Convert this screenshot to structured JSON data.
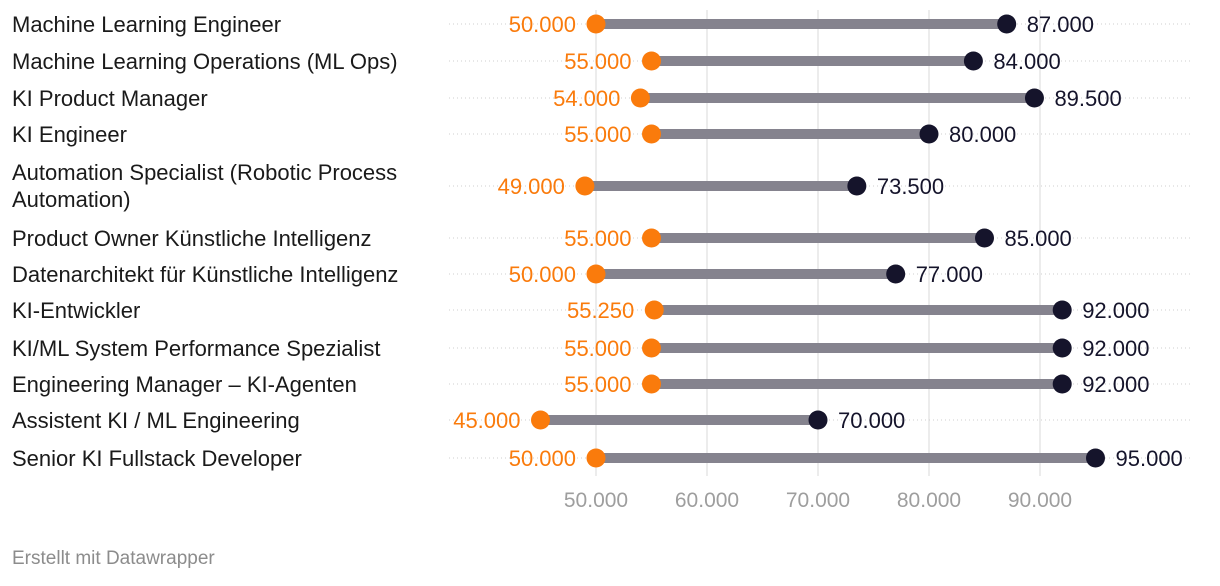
{
  "footer": "Erstellt mit Datawrapper",
  "colors": {
    "start": "#fa7b0c",
    "end": "#15142b",
    "bar": "#85838e",
    "grid": "#d9d9d9",
    "tick": "#9e9e9e"
  },
  "chart_data": {
    "type": "dot-range",
    "title": "",
    "xlabel": "",
    "ylabel": "",
    "xlim": [
      45000,
      95000
    ],
    "ticks": [
      50000,
      60000,
      70000,
      80000,
      90000
    ],
    "tick_labels": [
      "50.000",
      "60.000",
      "70.000",
      "80.000",
      "90.000"
    ],
    "rows": [
      {
        "label": "Machine Learning Engineer",
        "min": 50000,
        "max": 87000,
        "min_label": "50.000",
        "max_label": "87.000"
      },
      {
        "label": "Machine Learning Operations (ML Ops)",
        "min": 55000,
        "max": 84000,
        "min_label": "55.000",
        "max_label": "84.000"
      },
      {
        "label": "KI Product Manager",
        "min": 54000,
        "max": 89500,
        "min_label": "54.000",
        "max_label": "89.500"
      },
      {
        "label": "KI Engineer",
        "min": 55000,
        "max": 80000,
        "min_label": "55.000",
        "max_label": "80.000"
      },
      {
        "label": "Automation Specialist (Robotic Process Automation)",
        "min": 49000,
        "max": 73500,
        "min_label": "49.000",
        "max_label": "73.500"
      },
      {
        "label": "Product Owner Künstliche Intelligenz",
        "min": 55000,
        "max": 85000,
        "min_label": "55.000",
        "max_label": "85.000"
      },
      {
        "label": "Datenarchitekt für Künstliche Intelligenz",
        "min": 50000,
        "max": 77000,
        "min_label": "50.000",
        "max_label": "77.000"
      },
      {
        "label": "KI-Entwickler",
        "min": 55250,
        "max": 92000,
        "min_label": "55.250",
        "max_label": "92.000"
      },
      {
        "label": "KI/ML System Performance Spezialist",
        "min": 55000,
        "max": 92000,
        "min_label": "55.000",
        "max_label": "92.000"
      },
      {
        "label": "Engineering Manager – KI-Agenten",
        "min": 55000,
        "max": 92000,
        "min_label": "55.000",
        "max_label": "92.000"
      },
      {
        "label": "Assistent KI / ML Engineering",
        "min": 45000,
        "max": 70000,
        "min_label": "45.000",
        "max_label": "70.000"
      },
      {
        "label": "Senior KI Fullstack Developer",
        "min": 50000,
        "max": 95000,
        "min_label": "50.000",
        "max_label": "95.000"
      }
    ]
  }
}
